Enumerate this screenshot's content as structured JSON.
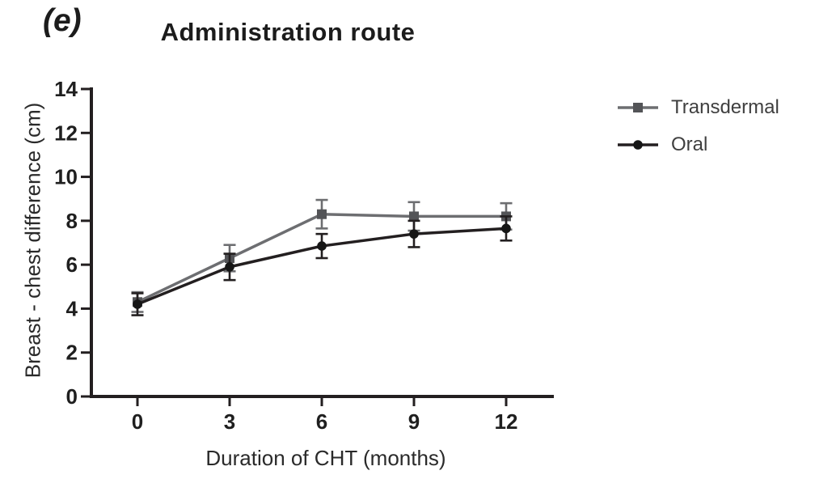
{
  "figure": {
    "panel_label": "(e)"
  },
  "chart_data": {
    "type": "line",
    "title": "Administration route",
    "xlabel": "Duration of CHT (months)",
    "ylabel": "Breast - chest difference (cm)",
    "x": [
      0,
      3,
      6,
      9,
      12
    ],
    "xticks": [
      0,
      3,
      6,
      9,
      12
    ],
    "yticks": [
      0,
      2,
      4,
      6,
      8,
      10,
      12,
      14
    ],
    "ylim": [
      0,
      14
    ],
    "xlim": [
      -1.5,
      13.5
    ],
    "grid": false,
    "legend_position": "right",
    "axis_color": "#231f20",
    "error_bars": true,
    "series": [
      {
        "name": "Transdermal",
        "marker": "square",
        "color": "#535457",
        "line_color": "#6d6e71",
        "values": [
          4.3,
          6.3,
          8.3,
          8.2,
          8.2
        ],
        "errors": [
          0.45,
          0.6,
          0.65,
          0.65,
          0.6
        ]
      },
      {
        "name": "Oral",
        "marker": "circle",
        "color": "#161616",
        "line_color": "#231f20",
        "values": [
          4.2,
          5.9,
          6.85,
          7.4,
          7.65
        ],
        "errors": [
          0.5,
          0.6,
          0.55,
          0.6,
          0.55
        ]
      }
    ]
  }
}
